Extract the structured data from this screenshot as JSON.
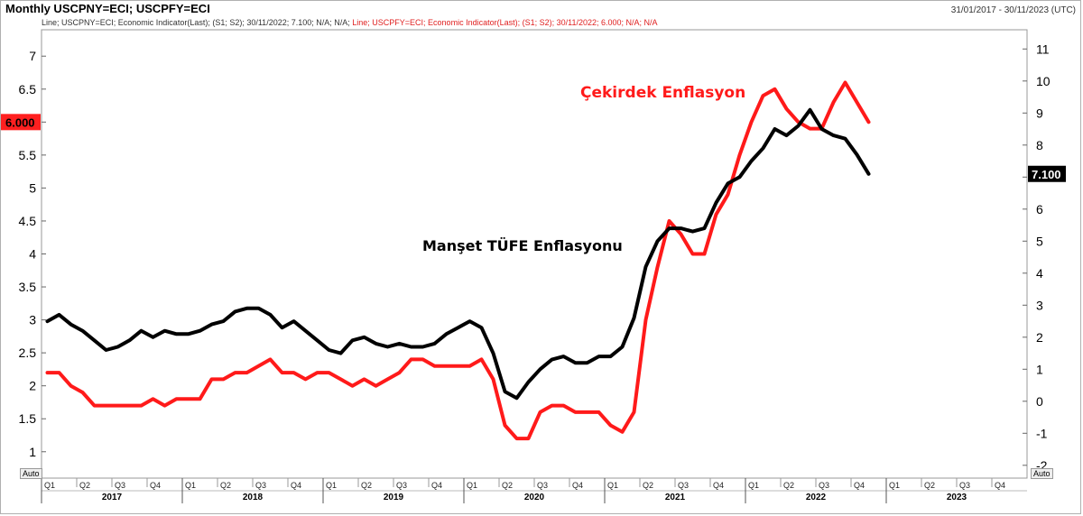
{
  "header": {
    "title": "Monthly USCPNY=ECI; USCPFY=ECI",
    "date_range": "31/01/2017 - 30/11/2023 (UTC)",
    "legend_line1": "Line; USCPNY=ECI; Economic Indicator(Last); (S1; S2); 30/11/2022; 7.100; N/A; N/A;",
    "legend_line2": "Line; USCPFY=ECI; Economic Indicator(Last); (S1; S2); 30/11/2022; 6.000; N/A; N/A",
    "auto_left": "Auto",
    "auto_right": "Auto"
  },
  "chart_data": {
    "type": "line",
    "x_range": [
      "2017-01",
      "2023-12"
    ],
    "quarter_labels": [
      "Q1",
      "Q2",
      "Q3",
      "Q4"
    ],
    "years": [
      "2017",
      "2018",
      "2019",
      "2020",
      "2021",
      "2022",
      "2023"
    ],
    "left_axis": {
      "ticks": [
        "7",
        "6.5",
        "6",
        "5.5",
        "5",
        "4.5",
        "4",
        "3.5",
        "3",
        "2.5",
        "2",
        "1.5",
        "1"
      ],
      "ylim": [
        0.6,
        7.4
      ],
      "last_value_label": "6.000",
      "last_value_color": "#ff2020"
    },
    "right_axis": {
      "ticks": [
        "11",
        "10",
        "9",
        "8",
        "7",
        "6",
        "5",
        "4",
        "3",
        "2",
        "1",
        "0",
        "-1",
        "-2"
      ],
      "ylim": [
        -2.4,
        11.6
      ],
      "last_value_label": "7.100",
      "last_value_color": "#000000"
    },
    "annotations": [
      {
        "text": "Çekirdek Enflasyon",
        "color": "#ff1a1a"
      },
      {
        "text": "Manşet TÜFE Enflasyonu",
        "color": "#000000"
      }
    ],
    "series": [
      {
        "axis": "left",
        "color": "#ff1a1a",
        "values": [
          2.2,
          2.2,
          2.0,
          1.9,
          1.7,
          1.7,
          1.7,
          1.7,
          1.7,
          1.8,
          1.7,
          1.8,
          1.8,
          1.8,
          2.1,
          2.1,
          2.2,
          2.2,
          2.3,
          2.4,
          2.2,
          2.2,
          2.1,
          2.2,
          2.2,
          2.1,
          2.0,
          2.1,
          2.0,
          2.1,
          2.2,
          2.4,
          2.4,
          2.3,
          2.3,
          2.3,
          2.3,
          2.4,
          2.1,
          1.4,
          1.2,
          1.2,
          1.6,
          1.7,
          1.7,
          1.6,
          1.6,
          1.6,
          1.4,
          1.3,
          1.6,
          3.0,
          3.8,
          4.5,
          4.3,
          4.0,
          4.0,
          4.6,
          4.9,
          5.5,
          6.0,
          6.4,
          6.5,
          6.2,
          6.0,
          5.9,
          5.9,
          6.3,
          6.6,
          6.3,
          6.0
        ]
      },
      {
        "axis": "right",
        "color": "#000000",
        "values": [
          2.5,
          2.7,
          2.4,
          2.2,
          1.9,
          1.6,
          1.7,
          1.9,
          2.2,
          2.0,
          2.2,
          2.1,
          2.1,
          2.2,
          2.4,
          2.5,
          2.8,
          2.9,
          2.9,
          2.7,
          2.3,
          2.5,
          2.2,
          1.9,
          1.6,
          1.5,
          1.9,
          2.0,
          1.8,
          1.7,
          1.8,
          1.7,
          1.7,
          1.8,
          2.1,
          2.3,
          2.5,
          2.3,
          1.5,
          0.3,
          0.1,
          0.6,
          1.0,
          1.3,
          1.4,
          1.2,
          1.2,
          1.4,
          1.4,
          1.7,
          2.6,
          4.2,
          5.0,
          5.4,
          5.4,
          5.3,
          5.4,
          6.2,
          6.8,
          7.0,
          7.5,
          7.9,
          8.5,
          8.3,
          8.6,
          9.1,
          8.5,
          8.3,
          8.2,
          7.7,
          7.1
        ]
      }
    ]
  }
}
